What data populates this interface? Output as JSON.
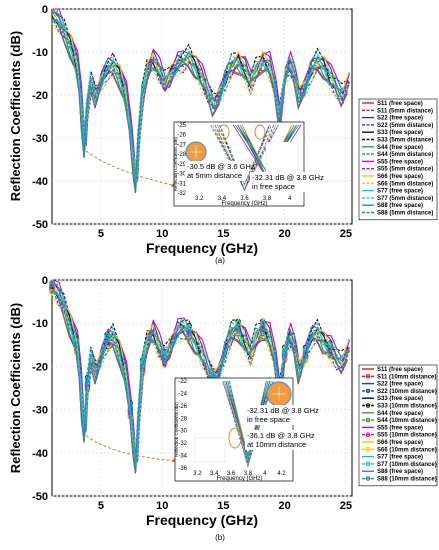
{
  "chart_data": [
    {
      "type": "line",
      "panel_label": "(a)",
      "xlabel": "Frequency (GHz)",
      "ylabel": "Reflection Coefficients (dB)",
      "xlim": [
        1,
        25.5
      ],
      "ylim": [
        -50,
        0
      ],
      "xticks": [
        "5",
        "10",
        "15",
        "20",
        "25"
      ],
      "yticks": [
        "0",
        "-10",
        "-20",
        "-30",
        "-40",
        "-50"
      ],
      "grid": true,
      "legend_position": "right",
      "series": [
        {
          "name": "S11 (free space)",
          "color": "#e41a1c",
          "dash": "solid"
        },
        {
          "name": "S11 (5mm distance)",
          "color": "#e41a1c",
          "dash": "dashed"
        },
        {
          "name": "S22 (free space)",
          "color": "#1f3fbf",
          "dash": "solid"
        },
        {
          "name": "S22 (5mm distance)",
          "color": "#1f3fbf",
          "dash": "dashed"
        },
        {
          "name": "S33 (free space)",
          "color": "#111111",
          "dash": "solid"
        },
        {
          "name": "S33 (5mm distance)",
          "color": "#111111",
          "dash": "dashed"
        },
        {
          "name": "S44 (free space)",
          "color": "#22aa22",
          "dash": "solid"
        },
        {
          "name": "S44 (5mm distance)",
          "color": "#22aa22",
          "dash": "dashed"
        },
        {
          "name": "S55 (free space)",
          "color": "#cc00cc",
          "dash": "solid"
        },
        {
          "name": "S55 (5mm distance)",
          "color": "#cc00cc",
          "dash": "dashed"
        },
        {
          "name": "S66 (free space)",
          "color": "#e6d000",
          "dash": "solid"
        },
        {
          "name": "S66 (5mm distance)",
          "color": "#e6d000",
          "dash": "dashed"
        },
        {
          "name": "S77 (free space)",
          "color": "#00cccc",
          "dash": "solid"
        },
        {
          "name": "S77 (5mm distance)",
          "color": "#00cccc",
          "dash": "dashed"
        },
        {
          "name": "S88 (free space)",
          "color": "#2b7fd9",
          "dash": "solid"
        },
        {
          "name": "S88 (5mm distance)",
          "color": "#2b7fd9",
          "dash": "dashed"
        }
      ],
      "curve": {
        "x": [
          1,
          1.5,
          2,
          2.5,
          3,
          3.3,
          3.5,
          3.7,
          3.9,
          4.2,
          4.6,
          5,
          5.5,
          6,
          6.5,
          7,
          7.4,
          7.7,
          7.9,
          8.1,
          8.4,
          8.8,
          9.2,
          9.7,
          10.2,
          10.7,
          11.2,
          11.7,
          12.2,
          12.7,
          13.2,
          13.7,
          14.2,
          14.7,
          15.2,
          15.7,
          16.2,
          16.7,
          17.2,
          17.7,
          18.2,
          18.7,
          19.2,
          19.6,
          20,
          20.4,
          20.8,
          21.2,
          21.7,
          22.2,
          22.7,
          23.2,
          23.7,
          24.2,
          24.7,
          25.2
        ],
        "y": [
          -1,
          -2.5,
          -5,
          -8,
          -13,
          -19,
          -26,
          -32,
          -23,
          -17,
          -20,
          -17,
          -14,
          -13,
          -15,
          -20,
          -28,
          -36,
          -40,
          -30,
          -20,
          -14,
          -12,
          -14,
          -17,
          -15,
          -13,
          -12,
          -11,
          -13,
          -16,
          -19,
          -22,
          -20,
          -16,
          -13,
          -12,
          -14,
          -17,
          -14,
          -12,
          -13,
          -18,
          -25,
          -16,
          -13,
          -15,
          -20,
          -18,
          -14,
          -12,
          -13,
          -16,
          -18,
          -20,
          -17
        ]
      },
      "inset": {
        "xticks": [
          "3.2",
          "3.4",
          "3.6",
          "3.8",
          "4"
        ],
        "yticks": [
          "-25",
          "-26",
          "-27",
          "-28",
          "-29",
          "-30",
          "-31",
          "-32"
        ],
        "xlabel": "Frequency (GHz)",
        "ylabel": "Reflection Coefficients (dB)",
        "annotations": [
          {
            "lines": [
              "-30.5 dB @ 3.6 GHz",
              "at 5mm distance"
            ]
          },
          {
            "lines": [
              "-32.31 dB @ 3.8 GHz",
              "in free space"
            ]
          }
        ]
      }
    },
    {
      "type": "line",
      "panel_label": "(b)",
      "xlabel": "Frequency (GHz)",
      "ylabel": "Reflection Coefficients (dB)",
      "xlim": [
        1,
        25.5
      ],
      "ylim": [
        -50,
        0
      ],
      "xticks": [
        "5",
        "10",
        "15",
        "20",
        "25"
      ],
      "yticks": [
        "0",
        "-10",
        "-20",
        "-30",
        "-40",
        "-50"
      ],
      "grid": true,
      "legend_position": "right",
      "series": [
        {
          "name": "S11 (free space)",
          "color": "#e41a1c",
          "dash": "solid"
        },
        {
          "name": "S11 (10mm distance)",
          "color": "#e41a1c",
          "dash": "dashed"
        },
        {
          "name": "S22 (free space)",
          "color": "#1f3fbf",
          "dash": "solid"
        },
        {
          "name": "S22 (10mm distance)",
          "color": "#1f3fbf",
          "dash": "dashed"
        },
        {
          "name": "S33 (free space)",
          "color": "#111111",
          "dash": "solid"
        },
        {
          "name": "S33 (10mm distance)",
          "color": "#111111",
          "dash": "dashed"
        },
        {
          "name": "S44 (free space)",
          "color": "#22aa22",
          "dash": "solid"
        },
        {
          "name": "S44 (10mm distance)",
          "color": "#22aa22",
          "dash": "dashed"
        },
        {
          "name": "S55 (free space)",
          "color": "#cc00cc",
          "dash": "solid"
        },
        {
          "name": "S55 (10mm distance)",
          "color": "#cc00cc",
          "dash": "dashed"
        },
        {
          "name": "S66 (free space)",
          "color": "#e6d000",
          "dash": "solid"
        },
        {
          "name": "S66 (10mm distance)",
          "color": "#e6d000",
          "dash": "dashed"
        },
        {
          "name": "S77 (free space)",
          "color": "#00cccc",
          "dash": "solid"
        },
        {
          "name": "S77 (10mm distance)",
          "color": "#00cccc",
          "dash": "dashed"
        },
        {
          "name": "S88 (free space)",
          "color": "#2b7fd9",
          "dash": "solid"
        },
        {
          "name": "S88 (10mm distance)",
          "color": "#2b7fd9",
          "dash": "dashed"
        }
      ],
      "curve": {
        "x": [
          1,
          1.5,
          2,
          2.5,
          3,
          3.3,
          3.5,
          3.7,
          3.9,
          4.2,
          4.6,
          5,
          5.5,
          6,
          6.5,
          7,
          7.4,
          7.7,
          7.9,
          8.1,
          8.4,
          8.8,
          9.2,
          9.7,
          10.2,
          10.7,
          11.2,
          11.7,
          12.2,
          12.7,
          13.2,
          13.7,
          14.2,
          14.7,
          15.2,
          15.7,
          16.2,
          16.7,
          17.2,
          17.7,
          18.2,
          18.7,
          19.2,
          19.6,
          20,
          20.4,
          20.8,
          21.2,
          21.7,
          22.2,
          22.7,
          23.2,
          23.7,
          24.2,
          24.7,
          25.2
        ],
        "y": [
          -1,
          -3,
          -6,
          -10,
          -15,
          -22,
          -30,
          -35,
          -24,
          -18,
          -21,
          -18,
          -14,
          -13,
          -16,
          -22,
          -30,
          -38,
          -42,
          -32,
          -20,
          -14,
          -12,
          -15,
          -18,
          -15,
          -12,
          -11,
          -12,
          -14,
          -17,
          -20,
          -23,
          -21,
          -16,
          -12,
          -11,
          -14,
          -17,
          -13,
          -11,
          -13,
          -18,
          -26,
          -17,
          -13,
          -15,
          -21,
          -17,
          -13,
          -12,
          -14,
          -16,
          -18,
          -19,
          -16
        ]
      },
      "inset": {
        "xticks": [
          "3.2",
          "3.4",
          "3.6",
          "3.8",
          "4",
          "4.2"
        ],
        "yticks": [
          "-22",
          "-24",
          "-26",
          "-28",
          "-30",
          "-32",
          "-34",
          "-36"
        ],
        "xlabel": "Frequency (GHz)",
        "ylabel": "Reflection Coefficients (dB)",
        "annotations": [
          {
            "lines": [
              "-32.31 dB @ 3.8 GHz",
              "in free space"
            ]
          },
          {
            "lines": [
              "-36.1 dB @ 3.8 GHz",
              "at 10mm distance"
            ]
          }
        ]
      }
    }
  ]
}
